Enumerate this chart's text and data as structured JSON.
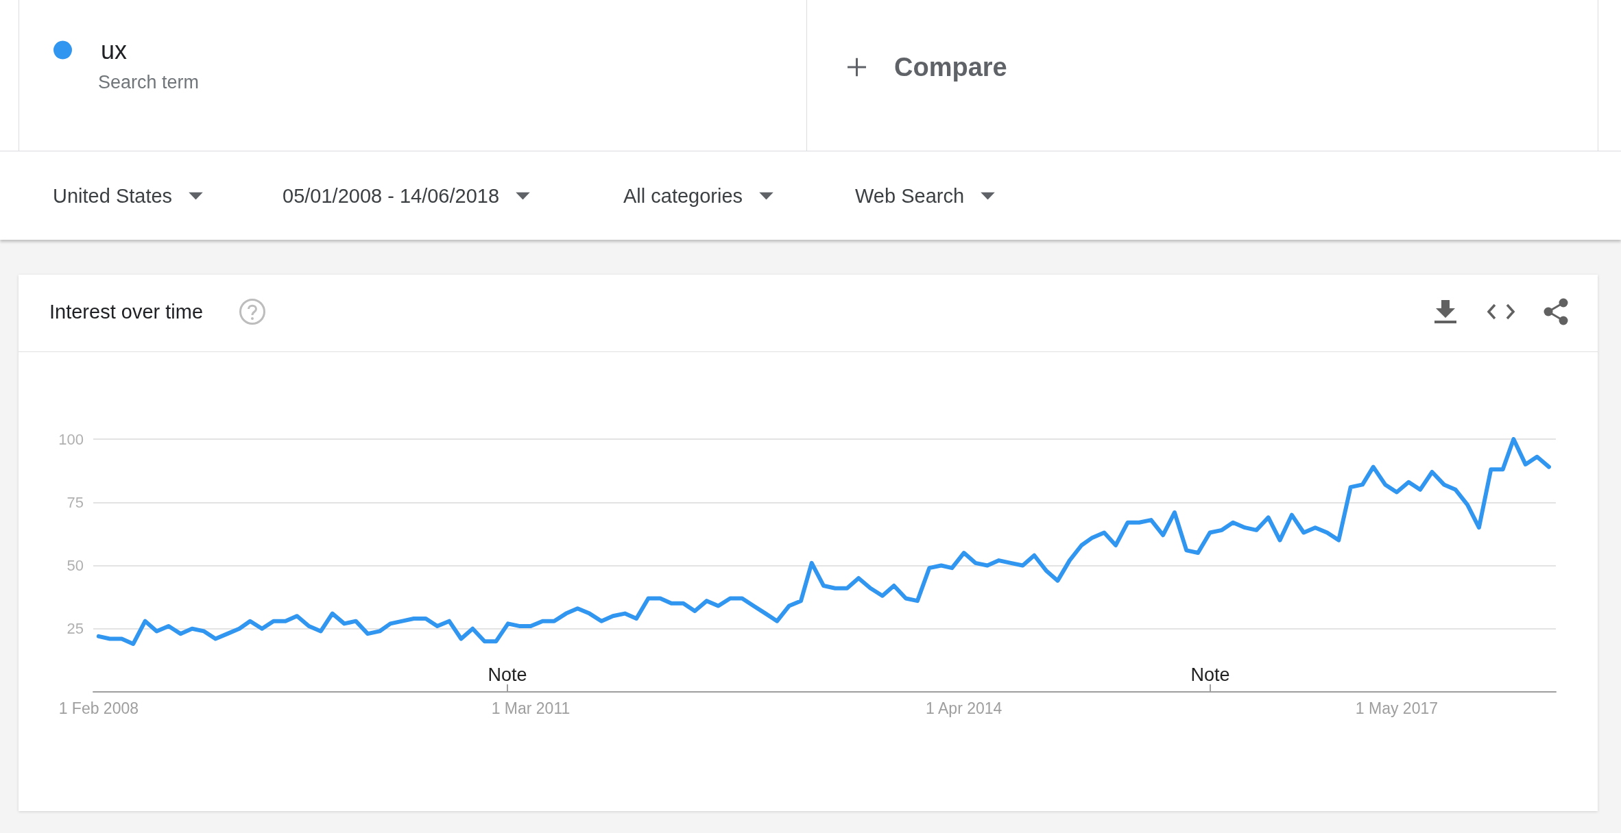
{
  "chart_data": {
    "type": "line",
    "title": "Interest over time",
    "x": [
      "2008-02",
      "2008-03",
      "2008-04",
      "2008-05",
      "2008-06",
      "2008-07",
      "2008-08",
      "2008-09",
      "2008-10",
      "2008-11",
      "2008-12",
      "2009-01",
      "2009-02",
      "2009-03",
      "2009-04",
      "2009-05",
      "2009-06",
      "2009-07",
      "2009-08",
      "2009-09",
      "2009-10",
      "2009-11",
      "2009-12",
      "2010-01",
      "2010-02",
      "2010-03",
      "2010-04",
      "2010-05",
      "2010-06",
      "2010-07",
      "2010-08",
      "2010-09",
      "2010-10",
      "2010-11",
      "2010-12",
      "2011-01",
      "2011-02",
      "2011-03",
      "2011-04",
      "2011-05",
      "2011-06",
      "2011-07",
      "2011-08",
      "2011-09",
      "2011-10",
      "2011-11",
      "2011-12",
      "2012-01",
      "2012-02",
      "2012-03",
      "2012-04",
      "2012-05",
      "2012-06",
      "2012-07",
      "2012-08",
      "2012-09",
      "2012-10",
      "2012-11",
      "2012-12",
      "2013-01",
      "2013-02",
      "2013-03",
      "2013-04",
      "2013-05",
      "2013-06",
      "2013-07",
      "2013-08",
      "2013-09",
      "2013-10",
      "2013-11",
      "2013-12",
      "2014-01",
      "2014-02",
      "2014-03",
      "2014-04",
      "2014-05",
      "2014-06",
      "2014-07",
      "2014-08",
      "2014-09",
      "2014-10",
      "2014-11",
      "2014-12",
      "2015-01",
      "2015-02",
      "2015-03",
      "2015-04",
      "2015-05",
      "2015-06",
      "2015-07",
      "2015-08",
      "2015-09",
      "2015-10",
      "2015-11",
      "2015-12",
      "2016-01",
      "2016-02",
      "2016-03",
      "2016-04",
      "2016-05",
      "2016-06",
      "2016-07",
      "2016-08",
      "2016-09",
      "2016-10",
      "2016-11",
      "2016-12",
      "2017-01",
      "2017-02",
      "2017-03",
      "2017-04",
      "2017-05",
      "2017-06",
      "2017-07",
      "2017-08",
      "2017-09",
      "2017-10",
      "2017-11",
      "2017-12",
      "2018-01",
      "2018-02",
      "2018-03",
      "2018-04",
      "2018-05",
      "2018-06"
    ],
    "series": [
      {
        "name": "ux",
        "color": "#3196ef",
        "values": [
          22,
          21,
          21,
          19,
          28,
          24,
          26,
          23,
          25,
          24,
          21,
          23,
          25,
          28,
          25,
          28,
          28,
          30,
          26,
          24,
          31,
          27,
          28,
          23,
          24,
          27,
          28,
          29,
          29,
          26,
          28,
          21,
          25,
          20,
          20,
          27,
          26,
          26,
          28,
          28,
          31,
          33,
          31,
          28,
          30,
          31,
          29,
          37,
          37,
          35,
          35,
          32,
          36,
          34,
          37,
          37,
          34,
          31,
          28,
          34,
          36,
          51,
          42,
          41,
          41,
          45,
          41,
          38,
          42,
          37,
          36,
          49,
          50,
          49,
          55,
          51,
          50,
          52,
          51,
          50,
          54,
          48,
          44,
          52,
          58,
          61,
          63,
          58,
          67,
          67,
          68,
          62,
          71,
          56,
          55,
          63,
          64,
          67,
          65,
          64,
          69,
          60,
          70,
          63,
          65,
          63,
          60,
          81,
          82,
          89,
          82,
          79,
          83,
          80,
          87,
          82,
          80,
          74,
          65,
          88,
          88,
          100,
          90,
          93,
          89
        ]
      }
    ],
    "xlim": [
      "2008-01-18",
      "2018-06-19"
    ],
    "xticks": [
      {
        "value": "2008-02-01",
        "label": "1 Feb 2008"
      },
      {
        "value": "2011-03-01",
        "label": "1 Mar 2011"
      },
      {
        "value": "2014-04-01",
        "label": "1 Apr 2014"
      },
      {
        "value": "2017-05-01",
        "label": "1 May 2017"
      }
    ],
    "ylim": [
      0,
      100
    ],
    "yticks": [
      25,
      50,
      75,
      100
    ],
    "grid": "y",
    "legend": "top left",
    "marker": "none",
    "annotations": [
      "Search term",
      "Compare",
      "United States",
      "05/01/2008 - 14/06/2018",
      "All categories",
      "Web Search",
      "Note",
      "Note"
    ]
  }
}
